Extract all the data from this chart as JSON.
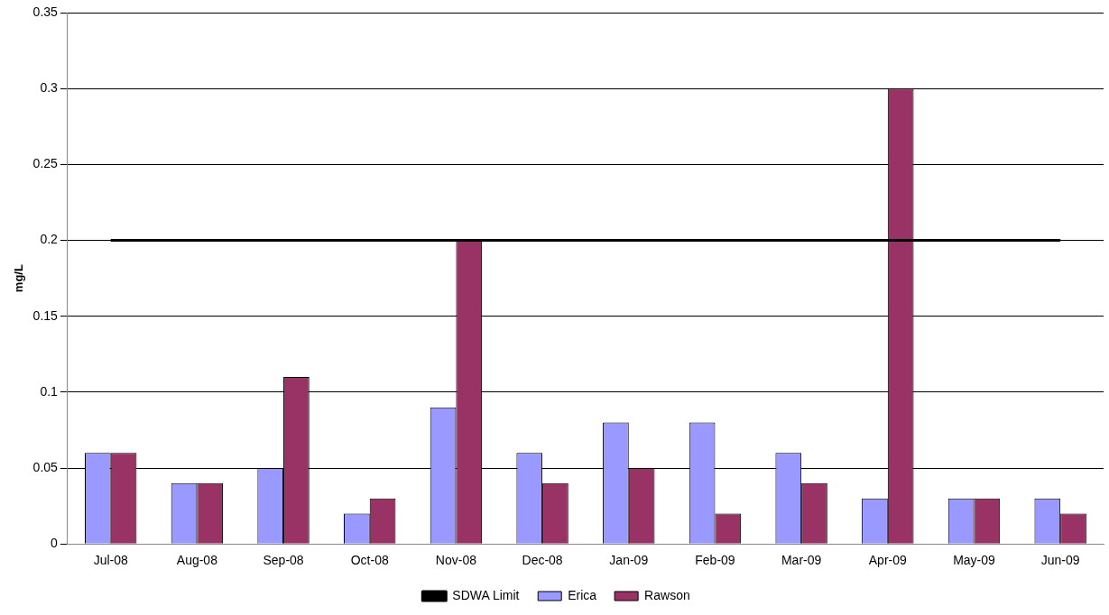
{
  "chart_data": {
    "type": "bar",
    "ylabel": "mg/L",
    "categories": [
      "Jul-08",
      "Aug-08",
      "Sep-08",
      "Oct-08",
      "Nov-08",
      "Dec-08",
      "Jan-09",
      "Feb-09",
      "Mar-09",
      "Apr-09",
      "May-09",
      "Jun-09"
    ],
    "series": [
      {
        "name": "Erica",
        "color": "#9999ff",
        "values": [
          0.06,
          0.04,
          0.05,
          0.02,
          0.09,
          0.06,
          0.08,
          0.08,
          0.06,
          0.03,
          0.03,
          0.03
        ]
      },
      {
        "name": "Rawson",
        "color": "#993366",
        "values": [
          0.06,
          0.04,
          0.11,
          0.03,
          0.2,
          0.04,
          0.05,
          0.02,
          0.04,
          0.3,
          0.03,
          0.02
        ]
      },
      {
        "name": "SDWA Limit",
        "type": "line",
        "color": "#000000",
        "values": [
          0.2,
          0.2,
          0.2,
          0.2,
          0.2,
          0.2,
          0.2,
          0.2,
          0.2,
          0.2,
          0.2,
          0.2
        ]
      }
    ],
    "ylim": [
      0,
      0.35
    ],
    "yticks": [
      0,
      0.05,
      0.1,
      0.15,
      0.2,
      0.25,
      0.3,
      0.35
    ],
    "grid": "y",
    "legend": "bottom",
    "marker": "none"
  }
}
